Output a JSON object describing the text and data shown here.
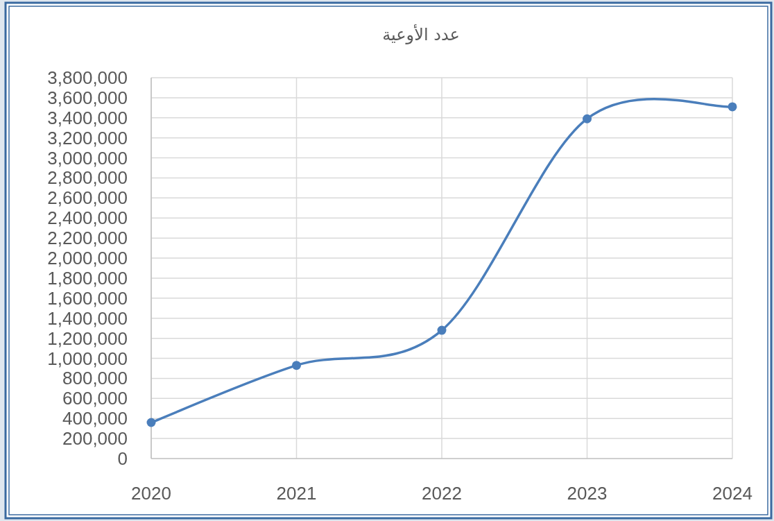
{
  "chart_data": {
    "type": "line",
    "title": "عدد الأوعية",
    "categories": [
      "2020",
      "2021",
      "2022",
      "2023",
      "2024"
    ],
    "series": [
      {
        "color": "#4a7ebb",
        "values": [
          360000,
          930000,
          1280000,
          3390000,
          3510000
        ]
      }
    ],
    "ylim": [
      0,
      3800000
    ],
    "yticks": [
      0,
      {
        "value": 200000,
        "label": "200,000"
      },
      {
        "value": 400000,
        "label": "400,000"
      },
      {
        "value": 600000,
        "label": "600,000"
      },
      {
        "value": 800000,
        "label": "800,000"
      },
      {
        "value": 1000000,
        "label": "1,000,000"
      },
      {
        "value": 1200000,
        "label": "1,200,000"
      },
      {
        "value": 1400000,
        "label": "1,400,000"
      },
      {
        "value": 1600000,
        "label": "1,600,000"
      },
      {
        "value": 1800000,
        "label": "1,800,000"
      },
      {
        "value": 2000000,
        "label": "2,000,000"
      },
      {
        "value": 2200000,
        "label": "2,200,000"
      },
      {
        "value": 2400000,
        "label": "2,400,000"
      },
      {
        "value": 2600000,
        "label": "2,600,000"
      },
      {
        "value": 2800000,
        "label": "2,800,000"
      },
      {
        "value": 3000000,
        "label": "3,000,000"
      },
      {
        "value": 3200000,
        "label": "3,200,000"
      },
      {
        "value": 3400000,
        "label": "3,400,000"
      },
      {
        "value": 3600000,
        "label": "3,600,000"
      },
      {
        "value": 3800000,
        "label": "3,800,000"
      }
    ],
    "grid": true,
    "marker": "circle",
    "line_style": "solid"
  }
}
